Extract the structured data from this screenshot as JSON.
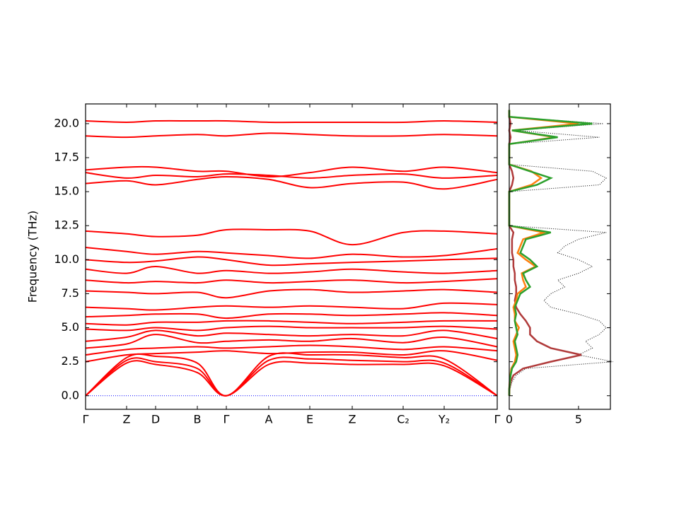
{
  "chart_data": [
    {
      "type": "band",
      "y_label": "Frequency (THz)",
      "x": [
        0,
        0.58,
        0.99,
        1.58,
        1.99,
        2.59,
        3.17,
        3.77,
        4.49,
        5.07,
        5.82
      ],
      "xlim": [
        0,
        5.82
      ],
      "xticks": [
        {
          "value": 0,
          "label": "Γ"
        },
        {
          "value": 0.58,
          "label": "Z"
        },
        {
          "value": 0.99,
          "label": "D"
        },
        {
          "value": 1.58,
          "label": "B"
        },
        {
          "value": 1.99,
          "label": "Γ"
        },
        {
          "value": 2.59,
          "label": "A"
        },
        {
          "value": 3.17,
          "label": "E"
        },
        {
          "value": 3.77,
          "label": "Z"
        },
        {
          "value": 4.49,
          "label": "C₂"
        },
        {
          "value": 5.07,
          "label": "Y₂"
        },
        {
          "value": 5.82,
          "label": "Γ"
        }
      ],
      "ylim": [
        -1.0,
        21.45
      ],
      "yticks": [
        {
          "value": 0,
          "label": "0.0"
        },
        2.5,
        {
          "value": 5,
          "label": "5.0"
        },
        7.5,
        {
          "value": 10,
          "label": "10.0"
        },
        12.5,
        {
          "value": 15,
          "label": "15.0"
        },
        17.5,
        {
          "value": 20,
          "label": "20.0"
        }
      ],
      "color": "#ff0000",
      "zero_line": {
        "value": 0,
        "color": "#0000ff"
      },
      "bands": [
        [
          0,
          2.4,
          2.3,
          1.7,
          0,
          2.3,
          2.4,
          2.3,
          2.3,
          2.2,
          0
        ],
        [
          0,
          2.6,
          2.5,
          2.0,
          0,
          2.6,
          2.7,
          2.6,
          2.5,
          2.4,
          0
        ],
        [
          0,
          2.8,
          2.9,
          2.4,
          0,
          2.9,
          3.0,
          3.0,
          2.8,
          2.7,
          0
        ],
        [
          2.5,
          3.0,
          3.1,
          3.2,
          3.3,
          3.1,
          3.2,
          3.2,
          3.0,
          3.3,
          2.6
        ],
        [
          3.0,
          3.4,
          3.5,
          3.6,
          3.5,
          3.6,
          3.7,
          3.6,
          3.4,
          3.6,
          3.3
        ],
        [
          3.5,
          3.8,
          4.5,
          3.9,
          4.0,
          4.1,
          4.0,
          4.2,
          3.9,
          4.3,
          3.6
        ],
        [
          4.0,
          4.3,
          4.8,
          4.4,
          4.6,
          4.5,
          4.4,
          4.5,
          4.4,
          4.8,
          4.2
        ],
        [
          4.9,
          4.8,
          5.0,
          4.8,
          5.0,
          5.1,
          5.0,
          5.0,
          5.0,
          5.1,
          4.9
        ],
        [
          5.3,
          5.2,
          5.4,
          5.4,
          5.5,
          5.5,
          5.4,
          5.3,
          5.4,
          5.5,
          5.5
        ],
        [
          5.8,
          5.9,
          6.0,
          6.0,
          5.7,
          6.0,
          6.0,
          5.9,
          6.0,
          6.1,
          5.9
        ],
        [
          6.5,
          6.4,
          6.3,
          6.5,
          6.6,
          6.5,
          6.6,
          6.5,
          6.4,
          6.8,
          6.7
        ],
        [
          7.7,
          7.6,
          7.5,
          7.6,
          7.2,
          7.7,
          7.8,
          7.6,
          7.7,
          7.8,
          7.6
        ],
        [
          8.5,
          8.3,
          8.4,
          8.3,
          8.5,
          8.3,
          8.4,
          8.5,
          8.3,
          8.4,
          8.6
        ],
        [
          9.3,
          9.0,
          9.5,
          9.0,
          9.2,
          9.0,
          9.1,
          9.3,
          9.1,
          9.0,
          9.2
        ],
        [
          10.0,
          9.8,
          9.9,
          10.2,
          10.0,
          9.6,
          9.7,
          9.8,
          9.9,
          10.0,
          10.1
        ],
        [
          10.9,
          10.6,
          10.4,
          10.6,
          10.5,
          10.3,
          10.1,
          10.4,
          10.2,
          10.3,
          10.8
        ],
        [
          12.1,
          11.9,
          11.7,
          11.8,
          12.2,
          12.2,
          12.1,
          11.1,
          12.0,
          12.1,
          11.9
        ],
        [
          15.6,
          15.8,
          15.5,
          15.9,
          16.1,
          15.9,
          15.3,
          15.6,
          15.7,
          15.2,
          15.9
        ],
        [
          16.4,
          16.0,
          16.2,
          16.1,
          16.3,
          16.2,
          16.0,
          16.2,
          16.3,
          16.0,
          16.2
        ],
        [
          16.6,
          16.8,
          16.8,
          16.5,
          16.5,
          16.1,
          16.4,
          16.8,
          16.5,
          16.8,
          16.4
        ],
        [
          19.1,
          19.0,
          19.1,
          19.2,
          19.1,
          19.3,
          19.2,
          19.1,
          19.1,
          19.2,
          19.1
        ],
        [
          20.2,
          20.1,
          20.2,
          20.2,
          20.2,
          20.1,
          20.1,
          20.1,
          20.1,
          20.2,
          20.1
        ]
      ]
    },
    {
      "type": "dos",
      "frequencies": [
        0,
        0.5,
        1,
        1.5,
        2,
        2.5,
        3,
        3.5,
        4,
        4.5,
        5,
        5.5,
        6,
        6.5,
        7,
        7.5,
        8,
        8.5,
        9,
        9.5,
        10,
        10.5,
        11,
        11.5,
        12,
        12.5,
        13,
        13.5,
        14,
        14.5,
        15,
        15.5,
        16,
        16.5,
        17,
        17.5,
        18,
        18.5,
        19,
        19.5,
        20,
        20.5,
        21
      ],
      "xlim": [
        0,
        7.3
      ],
      "xticks": [
        0,
        5
      ],
      "ylim": [
        -1.0,
        21.45
      ],
      "series": [
        {
          "color": "#000000",
          "style": "dotted",
          "values": [
            0,
            0.05,
            0.2,
            0.5,
            1.2,
            7.5,
            5,
            6,
            5.5,
            6.5,
            7,
            6.5,
            5,
            3,
            2.5,
            3,
            4,
            3.5,
            5,
            6,
            5,
            3.5,
            4,
            5,
            7,
            0,
            0,
            0,
            0,
            0,
            0,
            6.5,
            7,
            6,
            0,
            0,
            0,
            0,
            6.5,
            0.5,
            6.8,
            0,
            0
          ]
        },
        {
          "color": "#b03a3a",
          "style": "solid",
          "values": [
            0,
            0.02,
            0.1,
            0.3,
            1,
            3,
            5.2,
            3,
            2,
            1.5,
            1.5,
            1.2,
            0.8,
            0.5,
            0.4,
            0.5,
            0.5,
            0.4,
            0.4,
            0.3,
            0.3,
            0.2,
            0.2,
            0.2,
            0.3,
            0,
            0,
            0,
            0,
            0,
            0,
            0.2,
            0.3,
            0.2,
            0,
            0,
            0,
            0,
            0.1,
            0,
            0.1,
            0,
            0
          ]
        },
        {
          "color": "#ff7f0e",
          "style": "solid",
          "values": [
            0,
            0,
            0.03,
            0.08,
            0.15,
            0.4,
            0.5,
            0.4,
            0.3,
            0.5,
            0.7,
            0.4,
            0.4,
            0.3,
            0.5,
            0.6,
            1.2,
            1,
            0.9,
            1.9,
            1.2,
            0.6,
            0.8,
            1,
            2.5,
            0,
            0,
            0,
            0,
            0,
            0,
            1.6,
            2.3,
            1.6,
            0,
            0,
            0,
            0,
            3.3,
            0.2,
            5,
            0,
            0
          ]
        },
        {
          "color": "#2ca02c",
          "style": "solid",
          "values": [
            0,
            0,
            0.05,
            0.1,
            0.2,
            0.5,
            0.6,
            0.5,
            0.4,
            0.6,
            0.5,
            0.4,
            0.5,
            0.4,
            0.6,
            0.8,
            1.5,
            1.2,
            1,
            2,
            1.5,
            0.8,
            1,
            1.2,
            3,
            0,
            0,
            0,
            0,
            0,
            0,
            2,
            3,
            1.5,
            0,
            0,
            0,
            0,
            3.5,
            0.2,
            6,
            0,
            0
          ]
        }
      ]
    }
  ]
}
